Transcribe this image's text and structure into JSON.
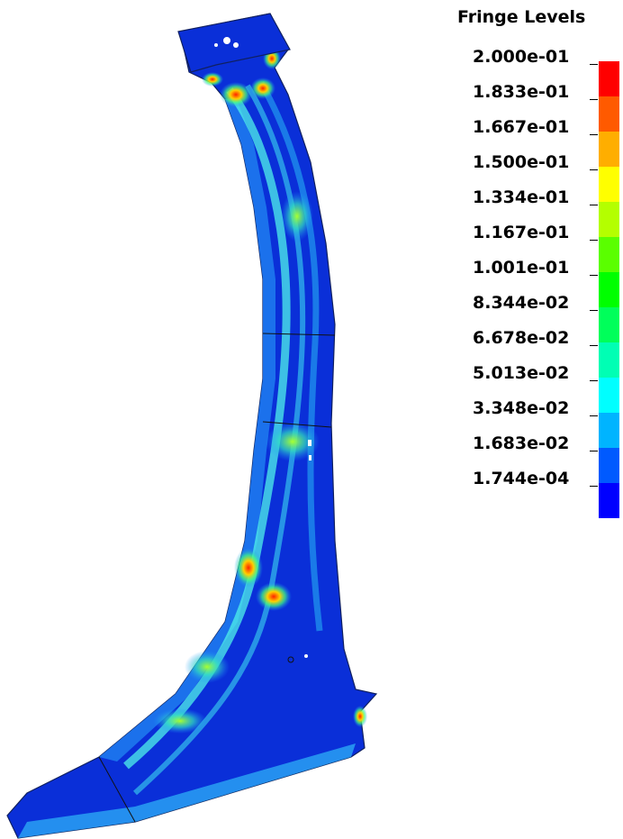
{
  "legend": {
    "title": "Fringe Levels",
    "levels": [
      "2.000e-01",
      "1.833e-01",
      "1.667e-01",
      "1.500e-01",
      "1.334e-01",
      "1.167e-01",
      "1.001e-01",
      "8.344e-02",
      "6.678e-02",
      "5.013e-02",
      "3.348e-02",
      "1.683e-02",
      "1.744e-04"
    ],
    "colors": [
      "#ff0000",
      "#ff5a00",
      "#ffae00",
      "#ffff00",
      "#b4ff00",
      "#5aff00",
      "#00ff00",
      "#00ff5a",
      "#00ffb4",
      "#00ffff",
      "#00b4ff",
      "#005aff",
      "#0000ff"
    ]
  },
  "part": {
    "base_color": "#0a2fd8",
    "mid_color": "#2a8cf0",
    "hot_color": "#ff3a00",
    "warm_color": "#ffcc00",
    "light_color": "#38f2e4"
  }
}
